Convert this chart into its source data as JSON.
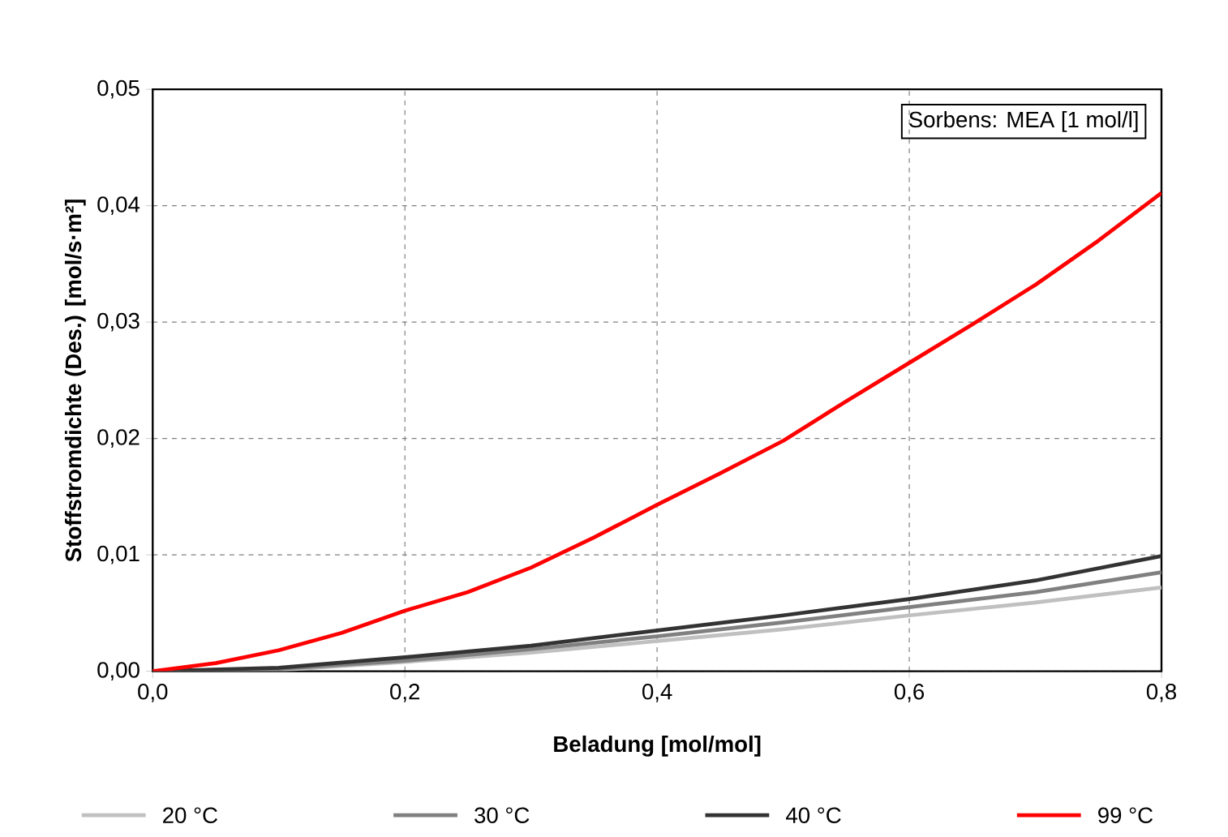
{
  "chart_data": {
    "type": "line",
    "xlabel": "Beladung [mol/mol]",
    "ylabel": "Stoffstromdichte (Des.) [mol/s·m²]",
    "annotations": [
      "Sorbens: MEA [1 mol/l]"
    ],
    "xlim": [
      0,
      0.8
    ],
    "ylim": [
      0,
      0.05
    ],
    "xticks": [
      {
        "value": 0,
        "label": "0,0"
      },
      {
        "value": 0.2,
        "label": "0,2"
      },
      {
        "value": 0.4,
        "label": "0,4"
      },
      {
        "value": 0.6,
        "label": "0,6"
      },
      {
        "value": 0.8,
        "label": "0,8"
      }
    ],
    "yticks": [
      {
        "value": 0,
        "label": "0,00"
      },
      {
        "value": 0.01,
        "label": "0,01"
      },
      {
        "value": 0.02,
        "label": "0,02"
      },
      {
        "value": 0.03,
        "label": "0,03"
      },
      {
        "value": 0.04,
        "label": "0,04"
      },
      {
        "value": 0.05,
        "label": "0,05"
      }
    ],
    "grid": true,
    "legend": "bottom",
    "marker": "none",
    "line_style": "solid",
    "series": [
      {
        "name": "20 °C",
        "color": "#c0c0c0",
        "x": [
          0,
          0.1,
          0.2,
          0.3,
          0.4,
          0.5,
          0.6,
          0.7,
          0.8
        ],
        "values": [
          0,
          0.0001,
          0.0008,
          0.0016,
          0.0026,
          0.0036,
          0.0048,
          0.0059,
          0.0072
        ]
      },
      {
        "name": "30 °C",
        "color": "#808080",
        "x": [
          0,
          0.1,
          0.2,
          0.3,
          0.4,
          0.5,
          0.6,
          0.7,
          0.8
        ],
        "values": [
          0,
          0.0002,
          0.0009,
          0.0019,
          0.003,
          0.0042,
          0.0055,
          0.0068,
          0.0085
        ]
      },
      {
        "name": "40 °C",
        "color": "#333333",
        "x": [
          0,
          0.1,
          0.2,
          0.3,
          0.4,
          0.5,
          0.6,
          0.7,
          0.8
        ],
        "values": [
          0,
          0.0003,
          0.0012,
          0.0022,
          0.0035,
          0.0048,
          0.0062,
          0.0078,
          0.0099
        ]
      },
      {
        "name": "99 °C",
        "color": "#ff0000",
        "x": [
          0,
          0.05,
          0.1,
          0.15,
          0.2,
          0.25,
          0.3,
          0.35,
          0.4,
          0.45,
          0.5,
          0.55,
          0.6,
          0.65,
          0.7,
          0.75,
          0.8
        ],
        "values": [
          0,
          0.0007,
          0.0018,
          0.0033,
          0.0052,
          0.0068,
          0.0089,
          0.0115,
          0.0143,
          0.017,
          0.0198,
          0.0232,
          0.0265,
          0.0298,
          0.0332,
          0.037,
          0.0411
        ]
      }
    ]
  }
}
